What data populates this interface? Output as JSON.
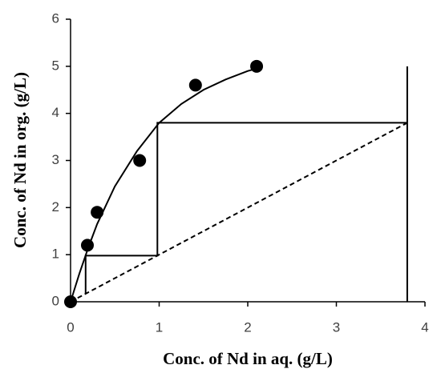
{
  "chart_data": {
    "type": "scatter",
    "x_label": "Conc. of Nd in aq. (g/L)",
    "y_label": "Conc. of Nd in org. (g/L)",
    "xlim": [
      0,
      4
    ],
    "xticks": [
      0,
      1,
      2,
      3,
      4
    ],
    "ylim": [
      0,
      6
    ],
    "yticks": [
      0,
      1,
      2,
      3,
      4,
      5,
      6
    ],
    "series": [
      {
        "style": "markers",
        "color": "#000000",
        "x": [
          0,
          0.19,
          0.3,
          0.78,
          1.41,
          2.1
        ],
        "values": [
          0,
          1.2,
          1.9,
          3.0,
          4.6,
          5.0
        ]
      },
      {
        "style": "solid",
        "color": "#000000",
        "x": [
          0,
          0.1,
          0.2,
          0.3,
          0.5,
          0.75,
          1.0,
          1.25,
          1.5,
          1.75,
          2.0,
          2.1
        ],
        "values": [
          0,
          0.6,
          1.15,
          1.65,
          2.45,
          3.2,
          3.8,
          4.2,
          4.5,
          4.72,
          4.9,
          4.95
        ]
      },
      {
        "style": "dashed",
        "color": "#000000",
        "x": [
          0,
          3.8
        ],
        "values": [
          0,
          3.8
        ]
      },
      {
        "style": "solid",
        "color": "#000000",
        "x": [
          3.8,
          0.98,
          0.98,
          0.17,
          0.17
        ],
        "values": [
          3.8,
          3.8,
          0.98,
          0.98,
          0.17
        ]
      },
      {
        "style": "solid",
        "color": "#000000",
        "x": [
          3.8,
          3.8
        ],
        "values": [
          0,
          5.0
        ]
      }
    ]
  }
}
